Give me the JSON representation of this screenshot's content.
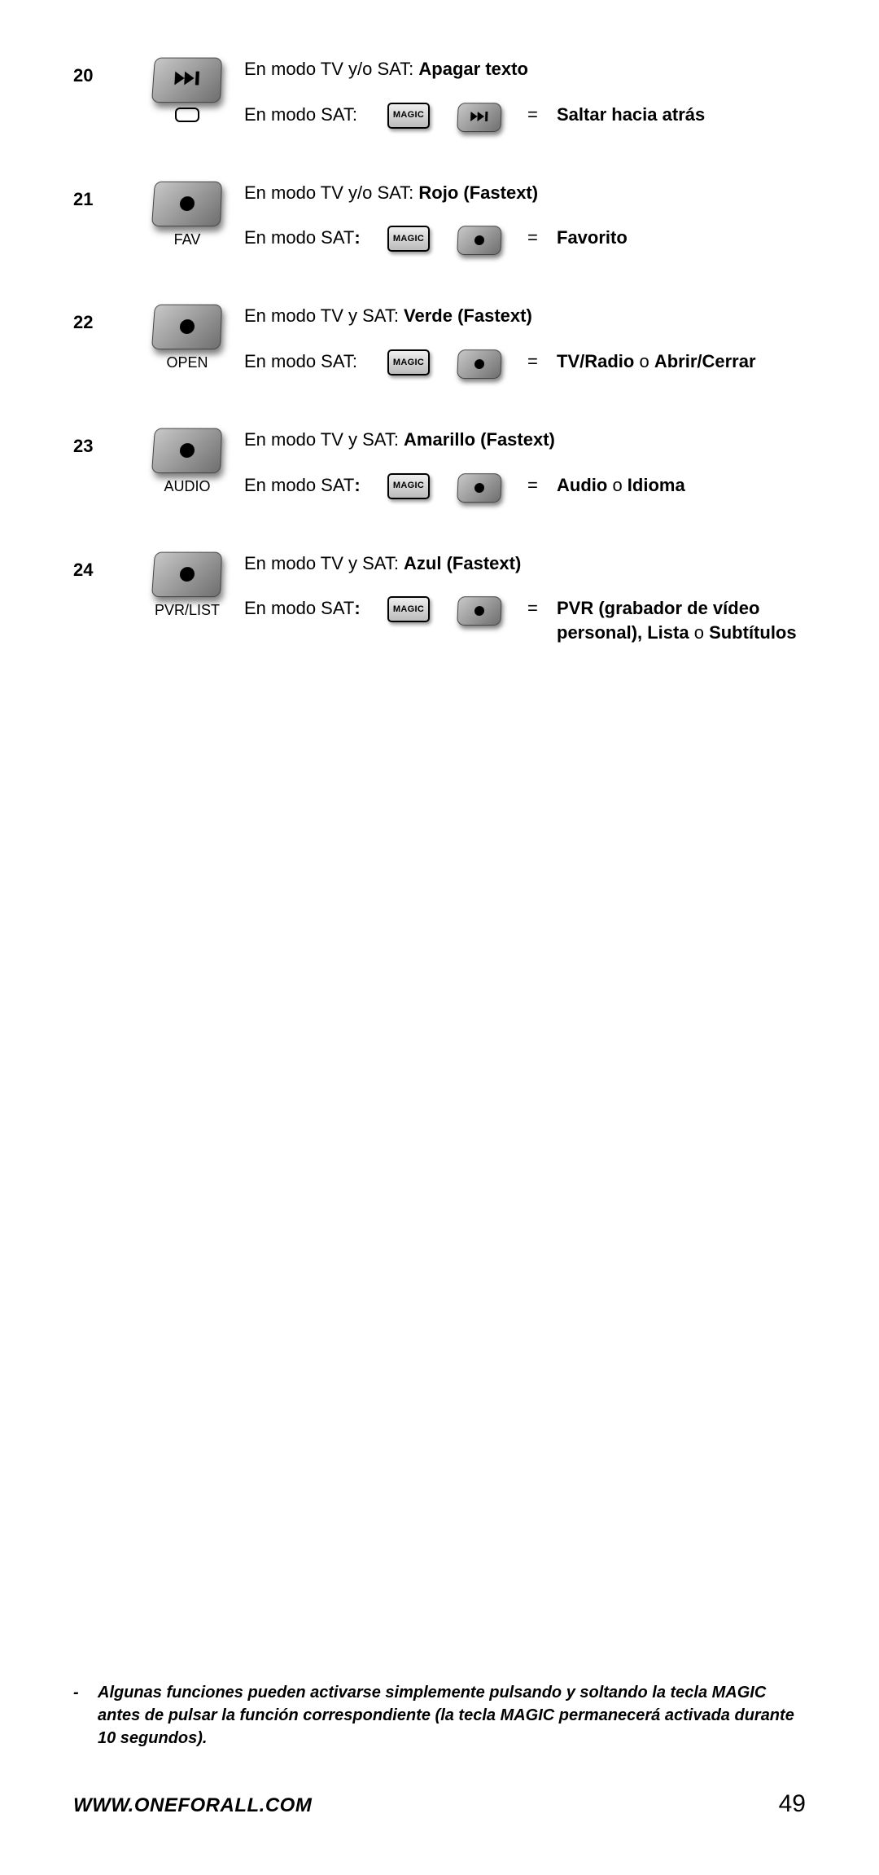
{
  "rows": [
    {
      "num": "20",
      "main_icon": "skip",
      "sub_shape": true,
      "btn_label": "",
      "line1_prefix": "En modo TV y/o SAT: ",
      "line1_bold": "Apagar texto",
      "line2_mode": "En modo SAT:",
      "small_icon": "skip",
      "eq": "=",
      "result_bold": "Saltar hacia atrás",
      "result_plain": ""
    },
    {
      "num": "21",
      "main_icon": "dot",
      "sub_shape": false,
      "btn_label": "FAV",
      "line1_prefix": "En modo TV y/o SAT: ",
      "line1_bold": "Rojo (Fastext)",
      "line2_mode": "En modo SAT:",
      "line2_mode_bold_colon": true,
      "small_icon": "dot",
      "eq": "=",
      "result_bold": "Favorito",
      "result_plain": ""
    },
    {
      "num": "22",
      "main_icon": "dot",
      "sub_shape": false,
      "btn_label": "OPEN",
      "line1_prefix": "En modo TV y SAT: ",
      "line1_bold": "Verde (Fastext)",
      "line2_mode": "En modo SAT:",
      "small_icon": "dot",
      "eq": "=",
      "result_bold": "TV/Radio",
      "result_plain": " o ",
      "result_bold2": "Abrir/Cerrar"
    },
    {
      "num": "23",
      "main_icon": "dot",
      "sub_shape": false,
      "btn_label": "AUDIO",
      "line1_prefix": "En modo TV y SAT: ",
      "line1_bold": "Amarillo (Fastext)",
      "line2_mode": "En modo SAT:",
      "line2_mode_bold_colon": true,
      "small_icon": "dot",
      "eq": "=",
      "result_bold": "Audio",
      "result_plain": " o ",
      "result_bold2": "Idioma"
    },
    {
      "num": "24",
      "main_icon": "dot",
      "sub_shape": false,
      "btn_label": "PVR/LIST",
      "line1_prefix": "En modo TV y SAT: ",
      "line1_bold": "Azul (Fastext)",
      "line2_mode": "En modo SAT:",
      "line2_mode_bold_colon": true,
      "small_icon": "dot",
      "eq": "=",
      "result_bold": "PVR (grabador de vídeo perso­nal), Lista",
      "result_plain": " o ",
      "result_bold2": "Subtítulos"
    }
  ],
  "magic_label": "MAGIC",
  "footnote_dash": "-",
  "footnote_text": "Algunas funciones pueden activarse simplemente pulsando y soltando la tecla MAGIC antes de pulsar la función correspondiente (la tecla MAGIC permanecerá activada durante 10 segundos).",
  "url": "WWW.ONEFORALL.COM",
  "page_num": "49"
}
